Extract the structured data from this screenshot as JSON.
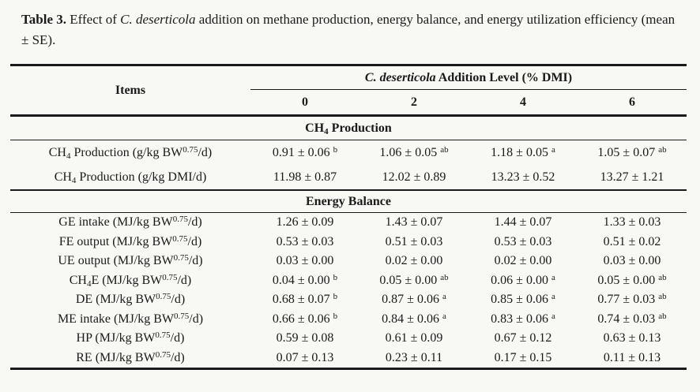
{
  "caption": {
    "label": "Table 3.",
    "text": "Effect of *C. deserticola* addition on methane production, energy balance, and energy utilization efficiency (mean ± SE)."
  },
  "table": {
    "items_header": "Items",
    "group_header": "*C. deserticola* Addition Level (% DMI)",
    "levels": [
      "0",
      "2",
      "4",
      "6"
    ],
    "sections": [
      {
        "title": "CH~4~ Production",
        "rows": [
          {
            "label": "CH~4~ Production (g/kg BW^0.75^/d)",
            "values": [
              "0.91 ± 0.06 ^b^",
              "1.06 ± 0.05 ^ab^",
              "1.18 ± 0.05 ^a^",
              "1.05 ± 0.07 ^ab^"
            ]
          },
          {
            "label": "CH~4~ Production (g/kg DMI/d)",
            "values": [
              "11.98 ± 0.87",
              "12.02 ± 0.89",
              "13.23 ± 0.52",
              "13.27 ± 1.21"
            ]
          }
        ]
      },
      {
        "title": "Energy Balance",
        "rows": [
          {
            "label": "GE intake (MJ/kg BW^0.75^/d)",
            "values": [
              "1.26 ± 0.09",
              "1.43 ± 0.07",
              "1.44 ± 0.07",
              "1.33 ± 0.03"
            ]
          },
          {
            "label": "FE output (MJ/kg BW^0.75^/d)",
            "values": [
              "0.53 ± 0.03",
              "0.51 ± 0.03",
              "0.53 ± 0.03",
              "0.51 ± 0.02"
            ]
          },
          {
            "label": "UE output (MJ/kg BW^0.75^/d)",
            "values": [
              "0.03 ± 0.00",
              "0.02 ± 0.00",
              "0.02 ± 0.00",
              "0.03 ± 0.00"
            ]
          },
          {
            "label": "CH~4~E (MJ/kg BW^0.75^/d)",
            "values": [
              "0.04 ± 0.00 ^b^",
              "0.05 ± 0.00 ^ab^",
              "0.06 ± 0.00 ^a^",
              "0.05 ± 0.00 ^ab^"
            ]
          },
          {
            "label": "DE (MJ/kg BW^0.75^/d)",
            "values": [
              "0.68 ± 0.07 ^b^",
              "0.87 ± 0.06 ^a^",
              "0.85 ± 0.06 ^a^",
              "0.77 ± 0.03 ^ab^"
            ]
          },
          {
            "label": "ME intake (MJ/kg BW^0.75^/d)",
            "values": [
              "0.66 ± 0.06 ^b^",
              "0.84 ± 0.06 ^a^",
              "0.83 ± 0.06 ^a^",
              "0.74 ± 0.03 ^ab^"
            ]
          },
          {
            "label": "HP (MJ/kg BW^0.75^/d)",
            "values": [
              "0.59 ± 0.08",
              "0.61 ± 0.09",
              "0.67 ± 0.12",
              "0.63 ± 0.13"
            ]
          },
          {
            "label": "RE (MJ/kg BW^0.75^/d)",
            "values": [
              "0.07 ± 0.13",
              "0.23 ± 0.11",
              "0.17 ± 0.15",
              "0.11 ± 0.13"
            ]
          }
        ]
      }
    ]
  }
}
